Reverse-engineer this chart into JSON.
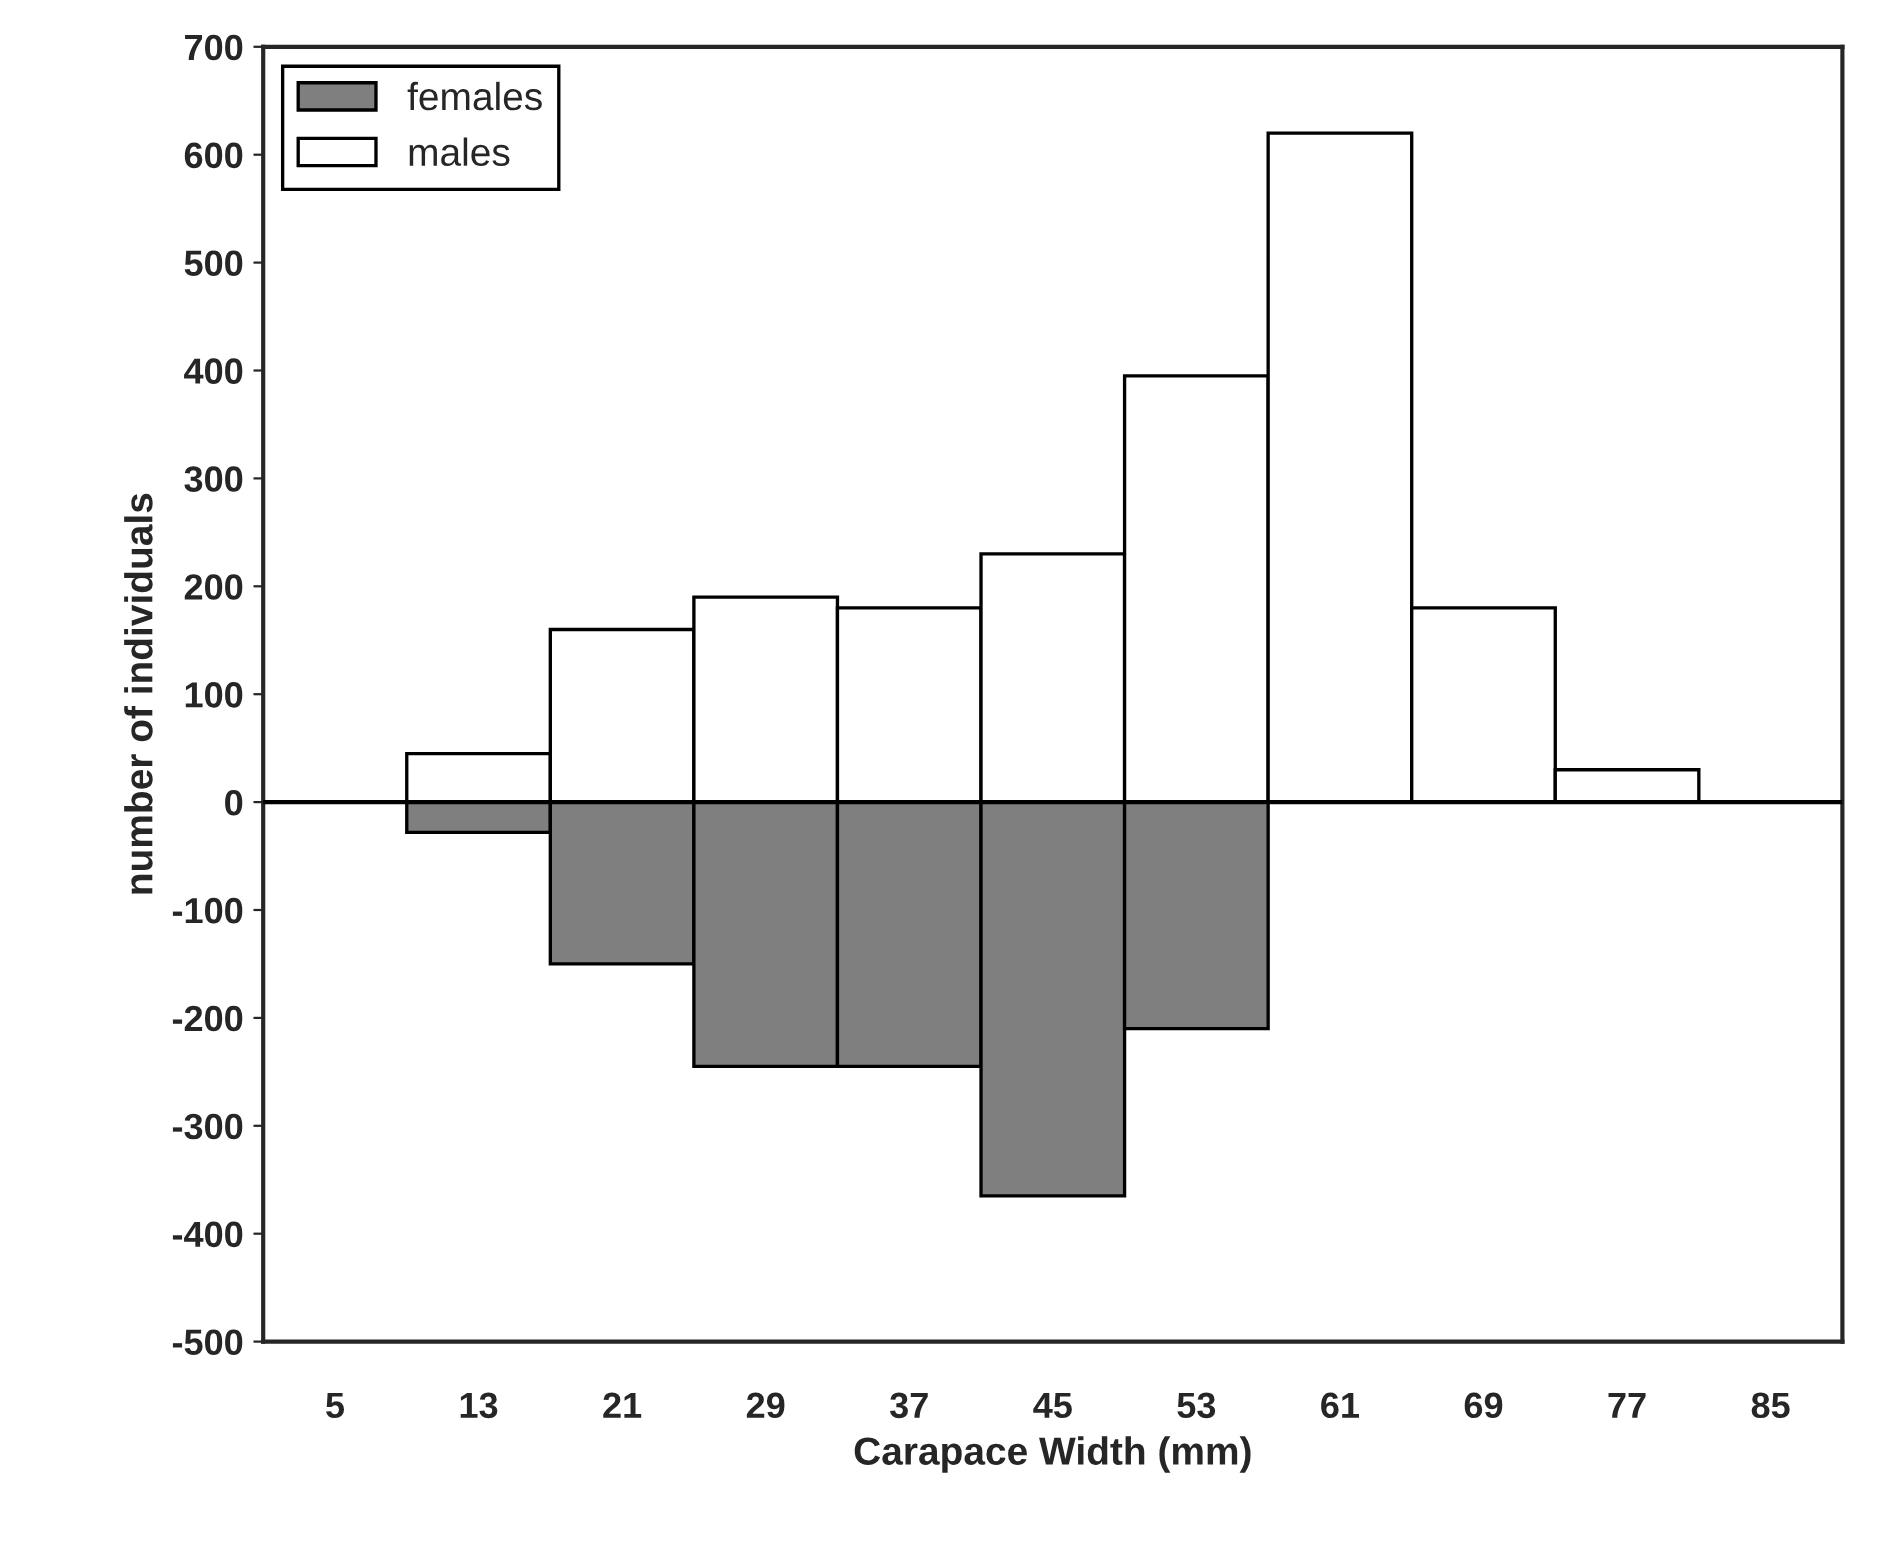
{
  "chart_data": {
    "type": "bar",
    "xlabel": "Carapace Width (mm)",
    "ylabel": "number of individuals",
    "categories": [
      "5",
      "13",
      "21",
      "29",
      "37",
      "45",
      "53",
      "61",
      "69",
      "77",
      "85"
    ],
    "series": [
      {
        "name": "females",
        "color": "#7f7f7f",
        "values": [
          0,
          -28,
          -150,
          -245,
          -245,
          -365,
          -210,
          0,
          0,
          0,
          0
        ]
      },
      {
        "name": "males",
        "color": "#ffffff",
        "values": [
          0,
          45,
          160,
          190,
          180,
          230,
          395,
          620,
          180,
          30,
          0
        ]
      }
    ],
    "ylim": [
      -500,
      700
    ],
    "yticks": [
      -500,
      -400,
      -300,
      -200,
      -100,
      0,
      100,
      200,
      300,
      400,
      500,
      600,
      700
    ],
    "stacked": true,
    "ref_lines": [
      {
        "axis": "y",
        "value": 0,
        "color": "#000000"
      }
    ],
    "grid": false,
    "legend": "top left"
  }
}
